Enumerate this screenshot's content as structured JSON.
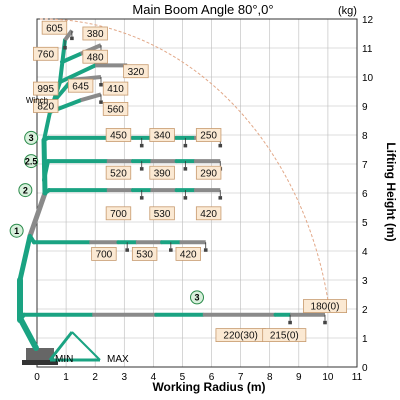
{
  "chart_data": {
    "type": "scatter",
    "title": "Main Boom Angle 80°,0°",
    "unit": "(kg)",
    "xlabel": "Working Radius (m)",
    "ylabel": "Lifting Height (m)",
    "xlim": [
      0,
      11
    ],
    "ylim": [
      0,
      12
    ],
    "xticks": [
      "0",
      "1",
      "2",
      "3",
      "4",
      "5",
      "6",
      "7",
      "8",
      "9",
      "10",
      "11"
    ],
    "yticks": [
      "0",
      "1",
      "2",
      "3",
      "4",
      "5",
      "6",
      "7",
      "8",
      "9",
      "10",
      "11",
      "12"
    ],
    "grid": true,
    "envelope_arc": true,
    "base_labels": [
      "MIN",
      "MAX"
    ],
    "winch_label": "Winch",
    "boom_sections": [
      "1",
      "2",
      "2.5",
      "3",
      "3"
    ],
    "points": [
      {
        "x": 0.6,
        "y": 11.7,
        "label": "605"
      },
      {
        "x": 2.0,
        "y": 11.5,
        "label": "380"
      },
      {
        "x": 0.3,
        "y": 10.8,
        "label": "760"
      },
      {
        "x": 2.0,
        "y": 10.7,
        "label": "480"
      },
      {
        "x": 3.4,
        "y": 10.2,
        "label": "320"
      },
      {
        "x": 1.5,
        "y": 9.7,
        "label": "645"
      },
      {
        "x": 2.7,
        "y": 9.6,
        "label": "410"
      },
      {
        "x": 0.3,
        "y": 9.6,
        "label": "995"
      },
      {
        "x": 0.3,
        "y": 9.0,
        "label": "820"
      },
      {
        "x": 2.7,
        "y": 8.9,
        "label": "560"
      },
      {
        "x": 2.8,
        "y": 8.0,
        "label": "450"
      },
      {
        "x": 4.3,
        "y": 8.0,
        "label": "340"
      },
      {
        "x": 5.9,
        "y": 8.0,
        "label": "250"
      },
      {
        "x": 2.8,
        "y": 6.7,
        "label": "520"
      },
      {
        "x": 4.3,
        "y": 6.7,
        "label": "390"
      },
      {
        "x": 5.9,
        "y": 6.7,
        "label": "290"
      },
      {
        "x": 2.8,
        "y": 5.3,
        "label": "700"
      },
      {
        "x": 4.3,
        "y": 5.3,
        "label": "530"
      },
      {
        "x": 5.9,
        "y": 5.3,
        "label": "420"
      },
      {
        "x": 2.3,
        "y": 3.9,
        "label": "700"
      },
      {
        "x": 3.7,
        "y": 3.9,
        "label": "530"
      },
      {
        "x": 5.2,
        "y": 3.9,
        "label": "420"
      },
      {
        "x": 9.9,
        "y": 2.1,
        "label": "180(0)"
      },
      {
        "x": 7.0,
        "y": 1.1,
        "label": "220(30)"
      },
      {
        "x": 8.5,
        "y": 1.1,
        "label": "215(0)"
      }
    ]
  }
}
